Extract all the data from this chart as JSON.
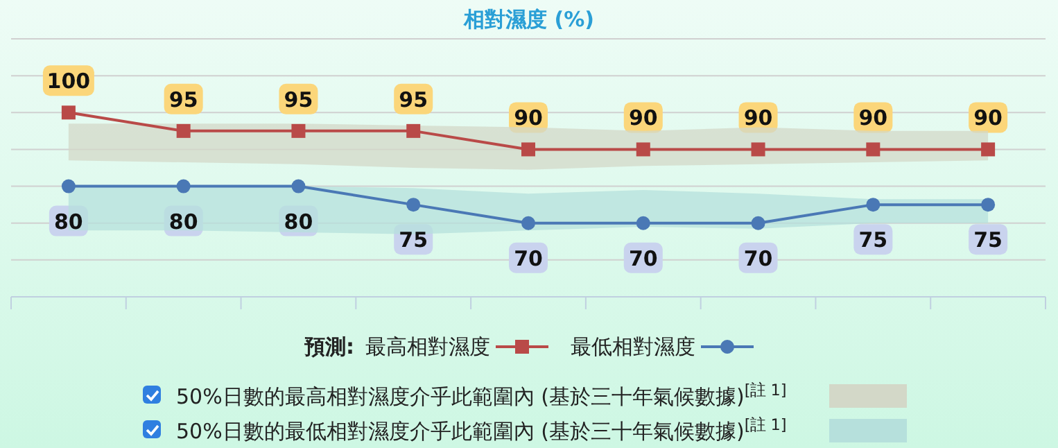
{
  "chart_data": {
    "type": "line",
    "title": "相對濕度 (%)",
    "categories": [
      null,
      null,
      null,
      null,
      null,
      null,
      null,
      null,
      null
    ],
    "ylim": [
      50,
      120
    ],
    "yticks": [
      {
        "value": 60,
        "label": null
      },
      {
        "value": 70,
        "label": null
      },
      {
        "value": 80,
        "label": null
      },
      {
        "value": 90,
        "label": null
      },
      {
        "value": 100,
        "label": null
      },
      {
        "value": 110,
        "label": null
      },
      {
        "value": 120,
        "label": null
      }
    ],
    "grid": "y",
    "legend": "bottom",
    "legend_title": "預測:",
    "data_labels": true,
    "annotations": [
      "50%日數的最高相對濕度介乎此範圍內 (基於三十年氣候數據)$^{[註 1]}$",
      "50%日數的最低相對濕度介乎此範圍內 (基於三十年氣候數據)$^{[註 1]}$"
    ],
    "series": [
      {
        "name": "最高相對濕度",
        "color": "#b94a48",
        "marker": "square",
        "values": [
          100,
          95,
          95,
          95,
          90,
          90,
          90,
          90,
          90
        ],
        "lower": [
          87,
          86.5,
          86,
          85,
          84.5,
          85.5,
          86,
          86.5,
          87
        ],
        "upper": [
          97,
          97,
          97,
          96.5,
          96,
          95,
          96,
          95,
          95
        ]
      },
      {
        "name": "最低相對濕度",
        "color": "#4a78b5",
        "marker": "circle",
        "values": [
          80,
          80,
          80,
          75,
          70,
          70,
          70,
          75,
          75
        ],
        "lower": [
          68,
          68,
          67.5,
          67,
          68,
          69,
          68.5,
          70,
          70
        ],
        "upper": [
          80,
          80,
          80,
          79.5,
          78,
          79,
          78,
          76.5,
          76.5
        ]
      }
    ]
  }
}
